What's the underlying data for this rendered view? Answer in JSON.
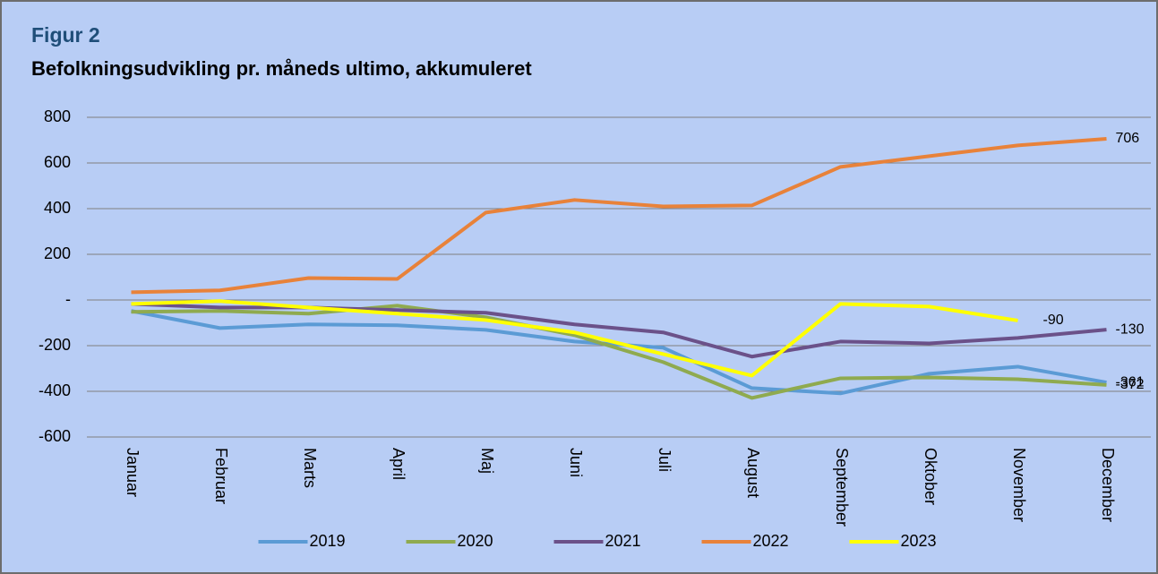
{
  "chart_data": {
    "type": "line",
    "title": "Figur 2",
    "subtitle": "Befolkningsudvikling pr. måneds ultimo, akkumuleret",
    "categories": [
      "Januar",
      "Februar",
      "Marts",
      "April",
      "Maj",
      "Juni",
      "Juli",
      "August",
      "September",
      "Oktober",
      "November",
      "December"
    ],
    "series": [
      {
        "name": "2019",
        "color": "#5b9bd5",
        "values": [
          -48,
          -123,
          -107,
          -111,
          -131,
          -182,
          -209,
          -386,
          -409,
          -323,
          -292,
          -361
        ]
      },
      {
        "name": "2020",
        "color": "#8faa4f",
        "values": [
          -52,
          -48,
          -60,
          -25,
          -76,
          -154,
          -272,
          -429,
          -343,
          -339,
          -347,
          -372
        ]
      },
      {
        "name": "2021",
        "color": "#6b5189",
        "values": [
          -17,
          -33,
          -33,
          -44,
          -56,
          -107,
          -142,
          -248,
          -182,
          -190,
          -166,
          -130
        ]
      },
      {
        "name": "2022",
        "color": "#e8823a",
        "values": [
          34,
          42,
          96,
          92,
          383,
          438,
          410,
          414,
          583,
          630,
          677,
          706
        ]
      },
      {
        "name": "2023",
        "color": "#ffff00",
        "values": [
          -17,
          -5,
          -33,
          -60,
          -88,
          -142,
          -237,
          -331,
          -17,
          -29,
          -90,
          null
        ]
      }
    ],
    "data_labels": "last",
    "ylim": [
      -600,
      800
    ],
    "yticks": [
      -600,
      -400,
      -200,
      {
        "value": 0,
        "label": "-"
      },
      200,
      400,
      600,
      800
    ],
    "grid": true,
    "legend": "bottom"
  }
}
